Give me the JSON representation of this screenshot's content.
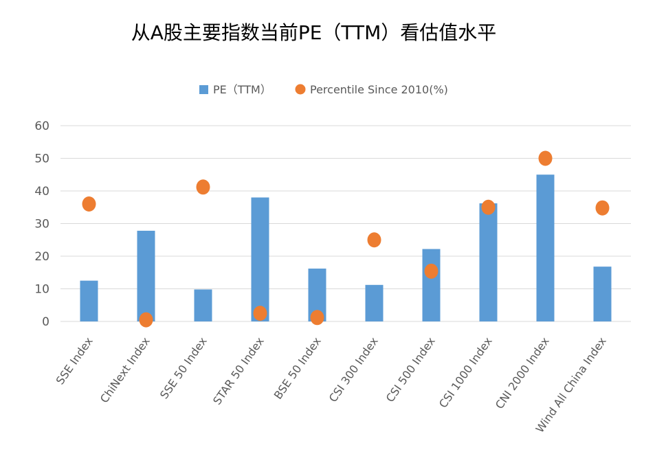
{
  "chart_data": {
    "type": "bar",
    "title": "从A股主要指数当前PE（TTM）看估值水平",
    "categories": [
      "SSE Index",
      "ChiNext Index",
      "SSE 50 Index",
      "STAR 50 Index",
      "BSE 50 Index",
      "CSI 300 Index",
      "CSI 500 Index",
      "CSI 1000 Index",
      "CNI 2000 Index",
      "Wind All China Index"
    ],
    "series": [
      {
        "name": "PE（TTM）",
        "kind": "bar",
        "color": "#5B9BD5",
        "values": [
          12.5,
          27.8,
          9.8,
          38.0,
          16.2,
          11.2,
          22.2,
          36.2,
          45.0,
          16.8
        ]
      },
      {
        "name": "Percentile Since 2010(%)",
        "kind": "dot",
        "color": "#ED7D31",
        "values": [
          36.0,
          0.5,
          41.2,
          2.5,
          1.2,
          25.0,
          15.4,
          35.0,
          50.0,
          34.8
        ]
      }
    ],
    "yticks": [
      "0",
      "10",
      "20",
      "30",
      "40",
      "50",
      "60"
    ],
    "ylim": [
      0,
      60
    ],
    "grid": true,
    "legend_position": "top-center"
  }
}
